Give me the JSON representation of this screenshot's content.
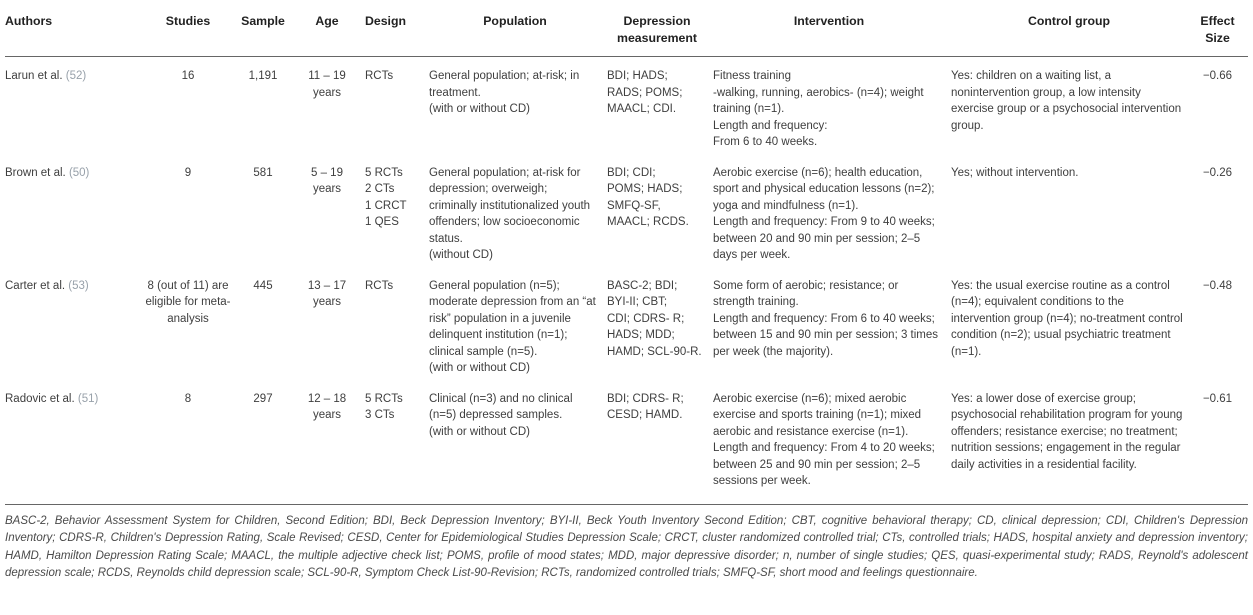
{
  "colors": {
    "background": "#ffffff",
    "header_text": "#222222",
    "body_text": "#3e3e3e",
    "citation_text": "#98a1aa",
    "rule": "#666666",
    "footnote_text": "#4a4a4a"
  },
  "header": {
    "authors": "Authors",
    "studies": "Studies",
    "sample": "Sample",
    "age": "Age",
    "design": "Design",
    "depression": "Depression measurement",
    "population": "Population",
    "intervention": "Intervention",
    "control": "Control group",
    "effect": "Effect Size"
  },
  "rows": [
    {
      "author": "Larun et al.",
      "citation": "(52)",
      "studies": "16",
      "sample": "1,191",
      "age": "11 – 19\nyears",
      "design": "RCTs",
      "population": "General population; at-risk; in treatment.\n(with or without CD)",
      "depression": "BDI; HADS;\nRADS; POMS;\nMAACL; CDI.",
      "intervention": "Fitness training\n-walking, running, aerobics- (n=4); weight training (n=1).\nLength and frequency:\nFrom 6 to 40 weeks.",
      "control": "Yes: children on a waiting list, a nonintervention group, a low intensity exercise group or a psychosocial intervention group.",
      "effect": "−0.66"
    },
    {
      "author": "Brown et al.",
      "citation": "(50)",
      "studies": "9",
      "sample": "581",
      "age": "5 – 19\nyears",
      "design": "5 RCTs\n2 CTs\n1 CRCT\n1 QES",
      "population": "General population; at-risk for depression; overweigh; criminally institutionalized youth offenders; low socioeconomic status.\n(without CD)",
      "depression": "BDI; CDI;\nPOMS; HADS;\nSMFQ-SF,\nMAACL; RCDS.",
      "intervention": "Aerobic exercise (n=6); health education, sport and physical education lessons (n=2); yoga and mindfulness (n=1).\nLength and frequency: From 9 to 40 weeks; between 20 and 90 min per session; 2–5 days per week.",
      "control": "Yes; without intervention.",
      "effect": "−0.26"
    },
    {
      "author": "Carter et al.",
      "citation": "(53)",
      "studies": "8 (out of 11) are eligible for meta-analysis",
      "sample": "445",
      "age": "13 – 17\nyears",
      "design": "RCTs",
      "population": "General population (n=5); moderate depression from an “at risk” population in a juvenile delinquent institution (n=1); clinical sample (n=5).\n(with or without CD)",
      "depression": "BASC-2; BDI;\nBYI-II; CBT;\nCDI; CDRS- R;\nHADS; MDD;\nHAMD; SCL-90-R.",
      "intervention": "Some form of aerobic; resistance; or strength training.\nLength and frequency: From 6 to 40 weeks; between 15 and 90 min per session; 3 times per week (the majority).",
      "control": "Yes: the usual exercise routine as a control (n=4); equivalent conditions to the intervention group (n=4); no-treatment control condition (n=2); usual psychiatric treatment (n=1).",
      "effect": "−0.48"
    },
    {
      "author": "Radovic et al.",
      "citation": "(51)",
      "studies": "8",
      "sample": "297",
      "age": "12 – 18\nyears",
      "design": "5 RCTs\n3 CTs",
      "population": "Clinical (n=3) and no clinical (n=5) depressed samples.\n(with or without CD)",
      "depression": "BDI; CDRS- R;\nCESD; HAMD.",
      "intervention": "Aerobic exercise (n=6); mixed aerobic exercise and sports training (n=1); mixed aerobic and resistance exercise (n=1).\nLength and frequency: From 4 to 20 weeks; between 25 and 90 min per session; 2–5 sessions per week.",
      "control": "Yes: a lower dose of exercise group; psychosocial rehabilitation program for young offenders; resistance exercise; no treatment; nutrition sessions; engagement in the regular daily activities in a residential facility.",
      "effect": "−0.61"
    }
  ],
  "footnote": "BASC-2, Behavior Assessment System for Children, Second Edition; BDI, Beck Depression Inventory; BYI-II, Beck Youth Inventory Second Edition; CBT, cognitive behavioral therapy; CD, clinical depression; CDI, Children's Depression Inventory; CDRS-R, Children's Depression Rating, Scale Revised; CESD, Center for Epidemiological Studies Depression Scale; CRCT, cluster randomized controlled trial; CTs, controlled trials; HADS, hospital anxiety and depression inventory; HAMD, Hamilton Depression Rating Scale; MAACL, the multiple adjective check list; POMS, profile of mood states; MDD, major depressive disorder; n, number of single studies; QES, quasi-experimental study; RADS, Reynold's adolescent depression scale; RCDS, Reynolds child depression scale; SCL-90-R, Symptom Check List-90-Revision; RCTs, randomized controlled trials; SMFQ-SF, short mood and feelings questionnaire."
}
